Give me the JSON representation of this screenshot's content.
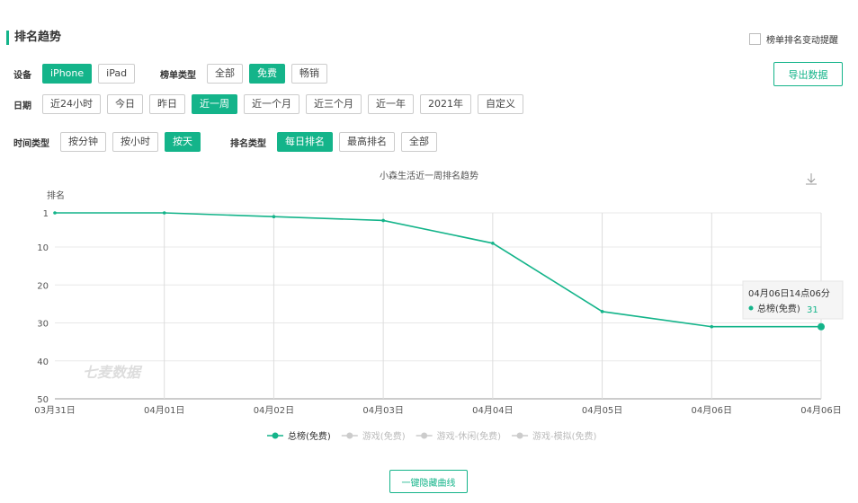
{
  "header": {
    "title": "排名趋势",
    "alert": "榜单排名变动提醒",
    "export": "导出数据"
  },
  "filters": [
    {
      "label": "设备",
      "options": [
        "iPhone",
        "iPad"
      ],
      "active": 0
    },
    {
      "label": "榜单类型",
      "options": [
        "全部",
        "免费",
        "畅销"
      ],
      "active": 1
    },
    {
      "label": "日期",
      "options": [
        "近24小时",
        "今日",
        "昨日",
        "近一周",
        "近一个月",
        "近三个月",
        "近一年",
        "2021年",
        "自定义"
      ],
      "active": 3
    },
    {
      "label": "时间类型",
      "options": [
        "按分钟",
        "按小时",
        "按天"
      ],
      "active": 2
    },
    {
      "label": "排名类型",
      "options": [
        "每日排名",
        "最高排名",
        "全部"
      ],
      "active": 0
    }
  ],
  "chart_data": {
    "type": "line",
    "title": "小森生活近一周排名趋势",
    "y_label": "排名",
    "watermark": "七麦数据",
    "categories": [
      "03月31日",
      "04月01日",
      "04月02日",
      "04月03日",
      "04月04日",
      "04月05日",
      "04月06日",
      "04月06日"
    ],
    "series": [
      {
        "name": "总榜(免费)",
        "color": "#14b48a",
        "values": [
          1,
          1,
          2,
          3,
          9,
          27,
          31,
          31
        ]
      }
    ],
    "hidden_series": [
      "游戏(免费)",
      "游戏-休闲(免费)",
      "游戏-模拟(免费)"
    ],
    "ylim": [
      1,
      50
    ],
    "y_inverted": true,
    "yticks": [
      1,
      10,
      20,
      30,
      40,
      50
    ],
    "grid": true,
    "tooltip": {
      "title": "04月06日14点06分",
      "point": 7
    }
  },
  "footer": {
    "button": "一键隐藏曲线"
  }
}
